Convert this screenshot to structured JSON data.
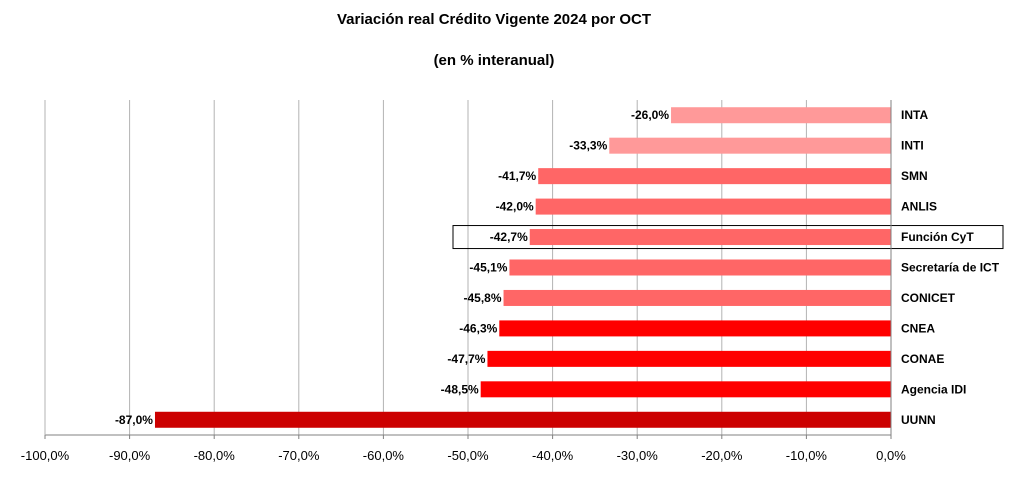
{
  "chart_data": {
    "type": "bar",
    "orientation": "horizontal",
    "title": "Variación real Crédito Vigente 2024 por OCT",
    "subtitle": "(en % interanual)",
    "xlabel": "",
    "ylabel": "",
    "xlim": [
      -100,
      0
    ],
    "x_ticks": [
      "-100,0%",
      "-90,0%",
      "-80,0%",
      "-70,0%",
      "-60,0%",
      "-50,0%",
      "-40,0%",
      "-30,0%",
      "-20,0%",
      "-10,0%",
      "0,0%"
    ],
    "x_tick_values": [
      -100,
      -90,
      -80,
      -70,
      -60,
      -50,
      -40,
      -30,
      -20,
      -10,
      0
    ],
    "grid": "vertical",
    "legend": "none",
    "categories": [
      "INTA",
      "INTI",
      "SMN",
      "ANLIS",
      "Función CyT",
      "Secretaría de ICT",
      "CONICET",
      "CNEA",
      "CONAE",
      "Agencia IDI",
      "UUNN"
    ],
    "values": [
      -26.0,
      -33.3,
      -41.7,
      -42.0,
      -42.7,
      -45.1,
      -45.8,
      -46.3,
      -47.7,
      -48.5,
      -87.0
    ],
    "data_labels": [
      "-26,0%",
      "-33,3%",
      "-41,7%",
      "-42,0%",
      "-42,7%",
      "-45,1%",
      "-45,8%",
      "-46,3%",
      "-47,7%",
      "-48,5%",
      "-87,0%"
    ],
    "colors": [
      "#ff9999",
      "#ff9999",
      "#ff6666",
      "#ff6666",
      "#ff6666",
      "#ff6666",
      "#ff6666",
      "#ff0000",
      "#ff0000",
      "#ff0000",
      "#cc0000"
    ],
    "highlighted_category": "Función CyT"
  }
}
